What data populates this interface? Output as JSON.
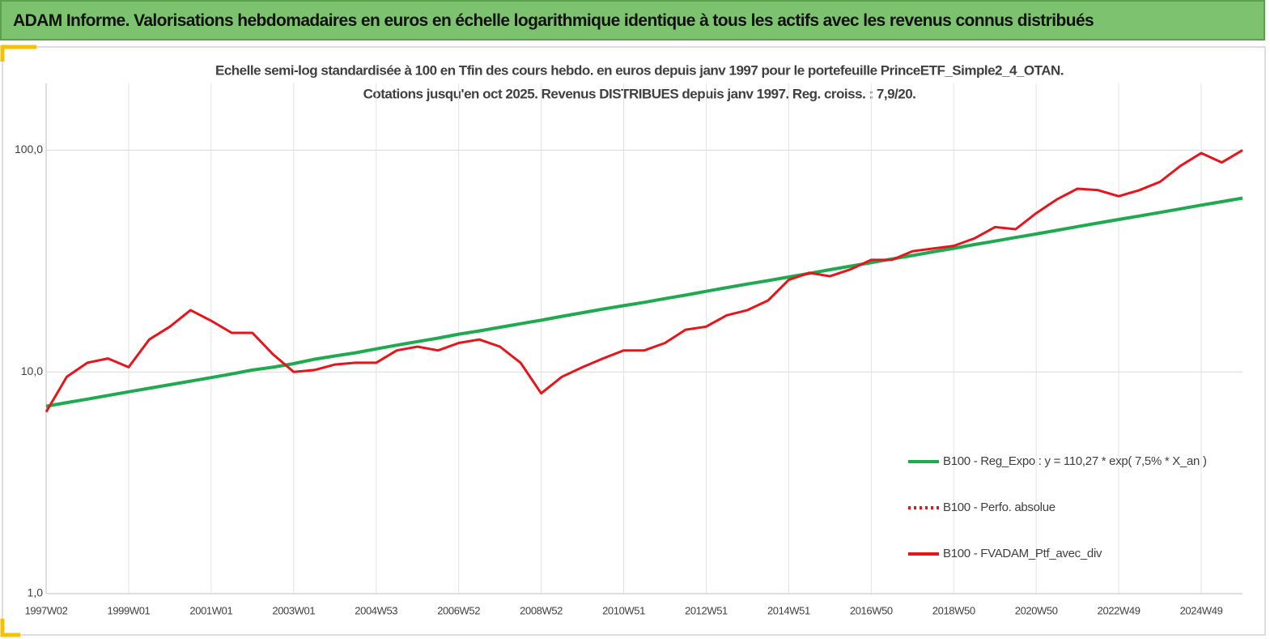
{
  "banner": "ADAM Informe. Valorisations hebdomadaires en euros en échelle logarithmique identique à tous les actifs avec les revenus connus distribués",
  "chart_data": {
    "type": "line",
    "title": "Echelle semi-log standardisée  à 100 en Tfin des cours hebdo.  en euros depuis janv 1997 pour le portefeuille PrinceETF_Simple2_4_OTAN.",
    "subtitle": "Cotations  jusqu'en oct 2025. Revenus DISTRIBUES depuis janv 1997. Reg. croiss. : 7,9/20.",
    "log_scale": true,
    "grid": true,
    "legend": "lower right",
    "ylim": [
      1,
      200
    ],
    "yticks": [
      {
        "value": 1,
        "label": "1,0"
      },
      {
        "value": 10,
        "label": "10,0"
      },
      {
        "value": 100,
        "label": "100,0"
      }
    ],
    "categories": [
      "1997W02",
      null,
      null,
      null,
      "1999W01",
      null,
      null,
      null,
      "2001W01",
      null,
      null,
      null,
      "2003W01",
      null,
      null,
      null,
      "2004W53",
      null,
      null,
      null,
      "2006W52",
      null,
      null,
      null,
      "2008W52",
      null,
      null,
      null,
      "2010W51",
      null,
      null,
      null,
      "2012W51",
      null,
      null,
      null,
      "2014W51",
      null,
      null,
      null,
      "2016W50",
      null,
      null,
      null,
      "2018W50",
      null,
      null,
      null,
      "2020W50",
      null,
      null,
      null,
      "2022W49",
      null,
      null,
      null,
      "2024W49",
      null,
      null
    ],
    "series": [
      {
        "name": "B100 - Reg_Expo : y = 110,27 * exp( 7,5% *  X_an )",
        "color": "#1faa4f",
        "style": "solid",
        "values": [
          7.0,
          7.27,
          7.54,
          7.83,
          8.13,
          8.44,
          8.76,
          9.09,
          9.43,
          9.79,
          10.2,
          10.5,
          10.9,
          11.4,
          11.8,
          12.2,
          12.7,
          13.2,
          13.7,
          14.2,
          14.8,
          15.3,
          15.9,
          16.5,
          17.1,
          17.8,
          18.5,
          19.2,
          19.9,
          20.6,
          21.4,
          22.2,
          23.1,
          24.0,
          24.9,
          25.8,
          26.8,
          27.8,
          28.9,
          30.0,
          31.1,
          32.3,
          33.5,
          34.8,
          36.1,
          37.5,
          38.9,
          40.4,
          41.9,
          43.5,
          45.2,
          46.9,
          48.7,
          50.5,
          52.4,
          54.4,
          56.5,
          58.6,
          60.8
        ]
      },
      {
        "name": "B100 - Perfo. absolue",
        "color": "#e8141b",
        "style": "dotted",
        "values": [
          null,
          null,
          null,
          null,
          null,
          null,
          null,
          null,
          null,
          null,
          null,
          null,
          null,
          null,
          null,
          null,
          null,
          null,
          null,
          null,
          null,
          null,
          null,
          null,
          null,
          null,
          null,
          null,
          null,
          null,
          null,
          null,
          null,
          null,
          null,
          null,
          null,
          null,
          null,
          null,
          null,
          null,
          null,
          null,
          null,
          null,
          null,
          null,
          null,
          null,
          null,
          null,
          null,
          null,
          null,
          null,
          null,
          null,
          null
        ]
      },
      {
        "name": "B100 - FVADAM_Ptf_avec_div",
        "color": "#e8141b",
        "style": "solid",
        "values": [
          6.6,
          9.5,
          11,
          11.5,
          10.5,
          14,
          16,
          19,
          17,
          15,
          15,
          12,
          10,
          10.2,
          10.8,
          11,
          11,
          12.5,
          13,
          12.5,
          13.5,
          14,
          13,
          11,
          8,
          9.5,
          10.5,
          11.5,
          12.5,
          12.5,
          13.5,
          15.5,
          16,
          18,
          19,
          21,
          26,
          28,
          27,
          29,
          32,
          32,
          35,
          36,
          37,
          40,
          45,
          44,
          52,
          60,
          67,
          66,
          62,
          66,
          72,
          85,
          97,
          88,
          100
        ]
      }
    ]
  }
}
